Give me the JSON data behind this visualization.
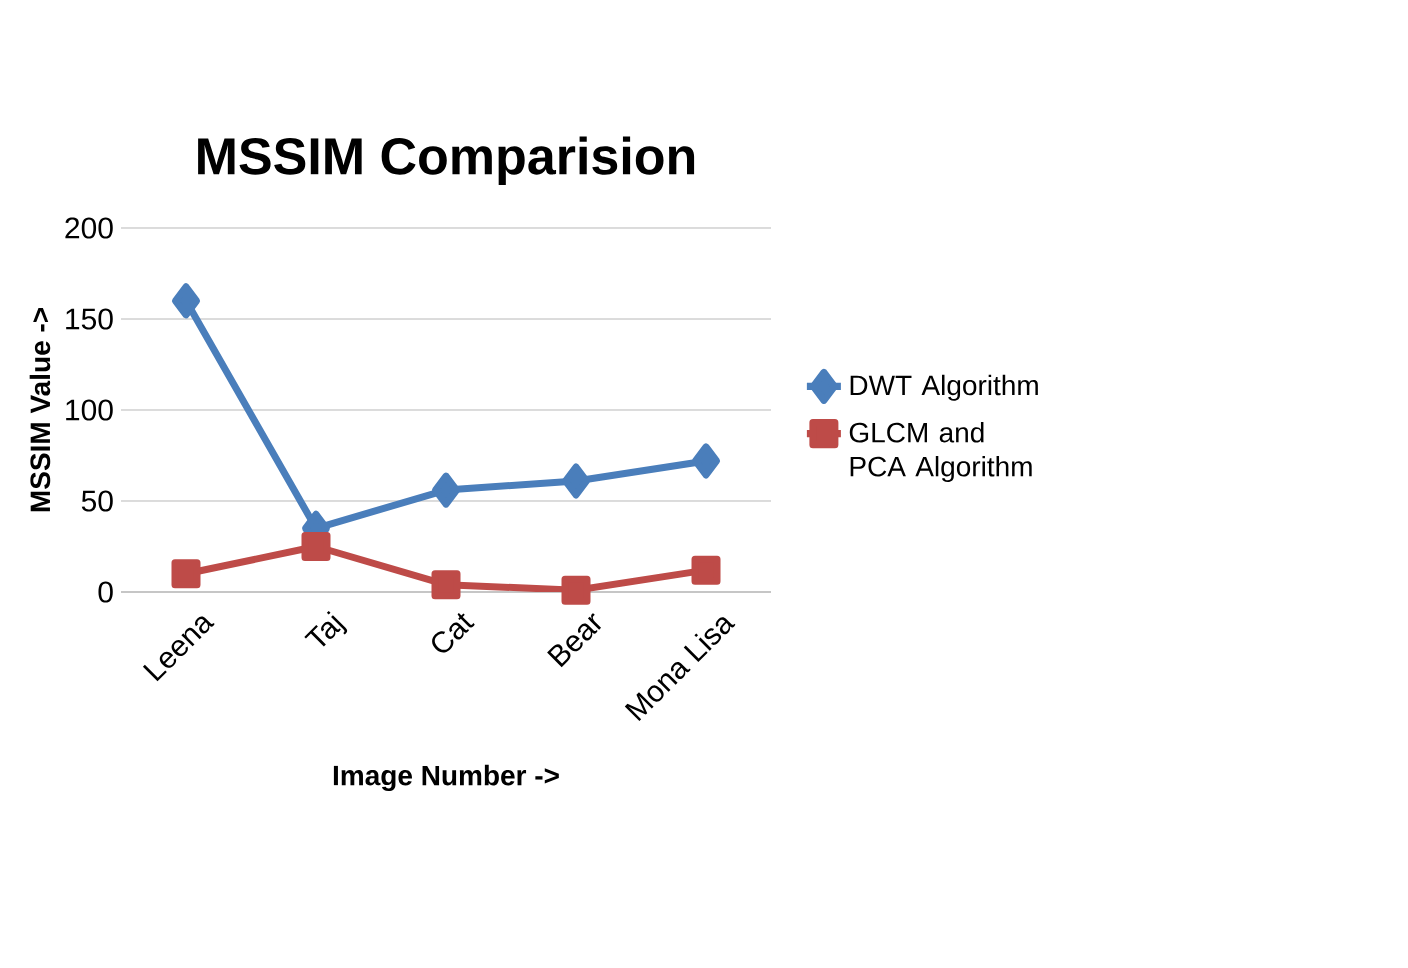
{
  "chart_data": {
    "type": "line",
    "title": "MSSIM Comparision",
    "xlabel": "Image Number ->",
    "ylabel": "MSSIM Value ->",
    "categories": [
      "Leena",
      "Taj",
      "Cat",
      "Bear",
      "Mona Lisa"
    ],
    "series": [
      {
        "name": "DWT Algorithm",
        "color": "#4a7ebb",
        "marker": "diamond",
        "values": [
          160,
          35,
          56,
          61,
          72
        ]
      },
      {
        "name": "GLCM and PCA Algorithm",
        "color": "#be4b48",
        "marker": "square",
        "values": [
          10,
          25,
          4,
          1,
          12
        ]
      }
    ],
    "ylim": [
      0,
      200
    ],
    "yticks": [
      0,
      50,
      100,
      150,
      200
    ],
    "grid": "y",
    "legend": "right"
  }
}
